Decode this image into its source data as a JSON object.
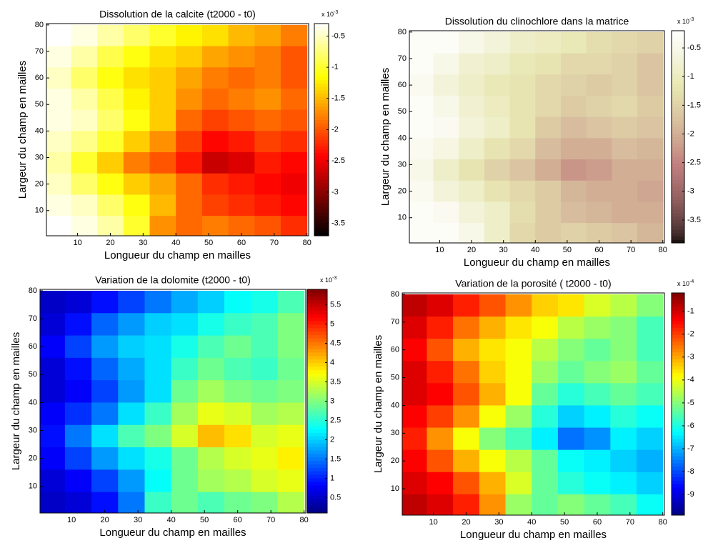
{
  "chart_data": [
    {
      "type": "heatmap",
      "title": "Dissolution de la calcite (t2000 - t0)",
      "xlabel": "Longueur du champ en mailles",
      "ylabel": "Largeur du champ en mailles",
      "colormap": "hot",
      "colorbar_label": "x 10",
      "colorbar_exponent": "-3",
      "x": [
        4,
        12,
        20,
        28,
        36,
        44,
        52,
        60,
        68,
        76
      ],
      "y": [
        76,
        68,
        60,
        52,
        44,
        36,
        28,
        20,
        12,
        4
      ],
      "xlim": [
        0.5,
        80.5
      ],
      "ylim": [
        0.5,
        80.5
      ],
      "xticks": [
        10,
        20,
        30,
        40,
        50,
        60,
        70,
        80
      ],
      "yticks": [
        10,
        20,
        30,
        40,
        50,
        60,
        70,
        80
      ],
      "clim": [
        -3.7,
        -0.3
      ],
      "cticks": [
        -0.5,
        -1,
        -1.5,
        -2,
        -2.5,
        -3,
        -3.5
      ],
      "z": [
        [
          -0.3,
          -0.4,
          -0.6,
          -0.8,
          -1.0,
          -1.2,
          -1.3,
          -1.5,
          -1.6,
          -1.8
        ],
        [
          -0.4,
          -0.6,
          -0.9,
          -1.1,
          -1.3,
          -1.4,
          -1.6,
          -1.7,
          -1.8,
          -2.0
        ],
        [
          -0.5,
          -0.8,
          -1.1,
          -1.3,
          -1.4,
          -1.6,
          -1.8,
          -1.9,
          -1.8,
          -2.0
        ],
        [
          -0.4,
          -0.6,
          -0.9,
          -1.2,
          -1.4,
          -1.7,
          -1.9,
          -1.8,
          -1.7,
          -1.9
        ],
        [
          -0.4,
          -0.5,
          -0.8,
          -1.1,
          -1.4,
          -1.9,
          -2.1,
          -2.0,
          -1.9,
          -2.0
        ],
        [
          -0.5,
          -0.7,
          -1.0,
          -1.4,
          -1.7,
          -2.1,
          -2.4,
          -2.3,
          -2.1,
          -2.2
        ],
        [
          -0.6,
          -1.0,
          -1.4,
          -1.8,
          -2.0,
          -2.3,
          -2.7,
          -2.6,
          -2.3,
          -2.4
        ],
        [
          -0.5,
          -0.8,
          -1.1,
          -1.4,
          -1.6,
          -1.9,
          -2.2,
          -2.3,
          -2.4,
          -2.5
        ],
        [
          -0.4,
          -0.5,
          -0.8,
          -1.1,
          -1.5,
          -1.9,
          -2.1,
          -2.2,
          -2.3,
          -2.4
        ],
        [
          -0.3,
          -0.4,
          -0.6,
          -1.0,
          -1.7,
          -1.9,
          -1.8,
          -1.9,
          -2.0,
          -2.2
        ]
      ]
    },
    {
      "type": "heatmap",
      "title": "Dissolution du clinochlore dans la matrice",
      "xlabel": "Longueur du champ en mailles",
      "ylabel": "Largeur du champ en mailles",
      "colormap": "pink",
      "colorbar_label": "x 10",
      "colorbar_exponent": "-3",
      "x": [
        4,
        12,
        20,
        28,
        36,
        44,
        52,
        60,
        68,
        76
      ],
      "y": [
        76,
        68,
        60,
        52,
        44,
        36,
        28,
        20,
        12,
        4
      ],
      "xlim": [
        0.5,
        80.5
      ],
      "ylim": [
        0.5,
        80.5
      ],
      "xticks": [
        10,
        20,
        30,
        40,
        50,
        60,
        70,
        80
      ],
      "yticks": [
        10,
        20,
        30,
        40,
        50,
        60,
        70,
        80
      ],
      "clim": [
        -3.9,
        -0.2
      ],
      "cticks": [
        -0.5,
        -1,
        -1.5,
        -2,
        -2.5,
        -3,
        -3.5
      ],
      "z": [
        [
          -0.3,
          -0.3,
          -0.5,
          -0.7,
          -0.9,
          -1.0,
          -1.1,
          -1.3,
          -1.4,
          -1.5
        ],
        [
          -0.3,
          -0.5,
          -0.8,
          -0.9,
          -1.1,
          -1.2,
          -1.4,
          -1.4,
          -1.5,
          -1.7
        ],
        [
          -0.4,
          -0.7,
          -0.9,
          -1.1,
          -1.2,
          -1.4,
          -1.5,
          -1.6,
          -1.5,
          -1.7
        ],
        [
          -0.3,
          -0.5,
          -0.8,
          -1.0,
          -1.2,
          -1.4,
          -1.6,
          -1.5,
          -1.4,
          -1.6
        ],
        [
          -0.3,
          -0.4,
          -0.7,
          -0.9,
          -1.2,
          -1.6,
          -1.8,
          -1.7,
          -1.6,
          -1.7
        ],
        [
          -0.4,
          -0.6,
          -0.9,
          -1.2,
          -1.4,
          -1.8,
          -2.0,
          -2.0,
          -1.8,
          -1.9
        ],
        [
          -0.5,
          -0.9,
          -1.2,
          -1.5,
          -1.7,
          -2.0,
          -2.3,
          -2.2,
          -2.0,
          -2.0
        ],
        [
          -0.4,
          -0.7,
          -0.9,
          -1.2,
          -1.4,
          -1.6,
          -1.9,
          -2.0,
          -2.0,
          -2.1
        ],
        [
          -0.3,
          -0.4,
          -0.7,
          -0.9,
          -1.3,
          -1.6,
          -1.8,
          -1.9,
          -2.0,
          -2.0
        ],
        [
          -0.3,
          -0.3,
          -0.5,
          -0.9,
          -1.4,
          -1.6,
          -1.5,
          -1.6,
          -1.7,
          -1.9
        ]
      ]
    },
    {
      "type": "heatmap",
      "title": "Variation de la dolomite (t2000 - t0)",
      "xlabel": "Longueur du champ en mailles",
      "ylabel": "Largeur du champ en mailles",
      "colormap": "jet",
      "colorbar_label": "x 10",
      "colorbar_exponent": "-3",
      "x": [
        4,
        12,
        20,
        28,
        36,
        44,
        52,
        60,
        68,
        76
      ],
      "y": [
        76,
        68,
        60,
        52,
        44,
        36,
        28,
        20,
        12,
        4
      ],
      "xlim": [
        0.5,
        80.5
      ],
      "ylim": [
        0.5,
        80.5
      ],
      "xticks": [
        10,
        20,
        30,
        40,
        50,
        60,
        70,
        80
      ],
      "yticks": [
        10,
        20,
        30,
        40,
        50,
        60,
        70,
        80
      ],
      "clim": [
        0.1,
        5.9
      ],
      "cticks": [
        0.5,
        1,
        1.5,
        2,
        2.5,
        3,
        3.5,
        4,
        4.5,
        5,
        5.5
      ],
      "z": [
        [
          0.5,
          0.6,
          0.9,
          1.2,
          1.5,
          1.8,
          2.0,
          2.3,
          2.4,
          2.7
        ],
        [
          0.6,
          0.9,
          1.4,
          1.7,
          2.0,
          2.1,
          2.4,
          2.6,
          2.7,
          3.0
        ],
        [
          0.8,
          1.2,
          1.7,
          2.0,
          2.1,
          2.4,
          2.7,
          2.9,
          2.7,
          3.0
        ],
        [
          0.6,
          0.9,
          1.4,
          1.8,
          2.1,
          2.6,
          2.9,
          2.7,
          2.6,
          2.9
        ],
        [
          0.6,
          0.8,
          1.2,
          1.7,
          2.1,
          2.9,
          3.2,
          3.0,
          2.9,
          3.0
        ],
        [
          0.8,
          1.1,
          1.5,
          2.1,
          2.6,
          3.2,
          3.6,
          3.5,
          3.2,
          3.3
        ],
        [
          0.9,
          1.5,
          2.1,
          2.7,
          3.0,
          3.5,
          4.1,
          3.9,
          3.5,
          3.6
        ],
        [
          0.8,
          1.2,
          1.7,
          2.1,
          2.4,
          2.9,
          3.3,
          3.5,
          3.6,
          3.8
        ],
        [
          0.6,
          0.8,
          1.2,
          1.7,
          2.3,
          2.9,
          3.2,
          3.3,
          3.5,
          3.6
        ],
        [
          0.5,
          0.6,
          0.9,
          1.5,
          2.6,
          2.9,
          2.7,
          2.9,
          3.0,
          3.3
        ]
      ]
    },
    {
      "type": "heatmap",
      "title": "Variation de la porosité ( t2000 - t0)",
      "xlabel": "Longueur du champ en mailles",
      "ylabel": "Largeur du champ en mailles",
      "colormap": "jet",
      "colorbar_label": "x 10",
      "colorbar_exponent": "-4",
      "x": [
        4,
        12,
        20,
        28,
        36,
        44,
        52,
        60,
        68,
        76
      ],
      "y": [
        76,
        68,
        60,
        52,
        44,
        36,
        28,
        20,
        12,
        4
      ],
      "xlim": [
        0.5,
        80.5
      ],
      "ylim": [
        0.5,
        80.5
      ],
      "xticks": [
        10,
        20,
        30,
        40,
        50,
        60,
        70,
        80
      ],
      "yticks": [
        10,
        20,
        30,
        40,
        50,
        60,
        70,
        80
      ],
      "clim": [
        -9.9,
        -0.2
      ],
      "cticks": [
        -1,
        -2,
        -3,
        -4,
        -5,
        -6,
        -7,
        -8,
        -9
      ],
      "z": [
        [
          -0.8,
          -1.1,
          -1.7,
          -2.2,
          -2.8,
          -3.4,
          -3.6,
          -4.2,
          -4.5,
          -5.0
        ],
        [
          -1.1,
          -1.7,
          -2.5,
          -3.1,
          -3.6,
          -3.9,
          -4.5,
          -4.8,
          -5.0,
          -5.6
        ],
        [
          -1.4,
          -2.2,
          -3.1,
          -3.6,
          -3.9,
          -4.5,
          -5.0,
          -5.3,
          -5.0,
          -5.6
        ],
        [
          -1.1,
          -1.7,
          -2.5,
          -3.4,
          -3.9,
          -4.8,
          -5.3,
          -5.0,
          -4.8,
          -5.3
        ],
        [
          -1.1,
          -1.4,
          -2.2,
          -3.1,
          -3.9,
          -5.3,
          -5.9,
          -5.6,
          -5.3,
          -5.6
        ],
        [
          -1.4,
          -2.0,
          -2.8,
          -3.9,
          -4.8,
          -5.9,
          -6.7,
          -6.4,
          -5.9,
          -6.2
        ],
        [
          -1.7,
          -2.8,
          -3.9,
          -5.0,
          -5.6,
          -6.4,
          -7.6,
          -7.3,
          -6.4,
          -6.7
        ],
        [
          -1.4,
          -2.2,
          -3.1,
          -3.9,
          -4.5,
          -5.3,
          -6.2,
          -6.4,
          -6.7,
          -7.0
        ],
        [
          -1.1,
          -1.4,
          -2.2,
          -3.1,
          -4.2,
          -5.3,
          -5.9,
          -6.2,
          -6.4,
          -6.7
        ],
        [
          -0.8,
          -1.1,
          -1.7,
          -2.8,
          -4.8,
          -5.3,
          -5.0,
          -5.3,
          -5.6,
          -6.2
        ]
      ]
    }
  ]
}
